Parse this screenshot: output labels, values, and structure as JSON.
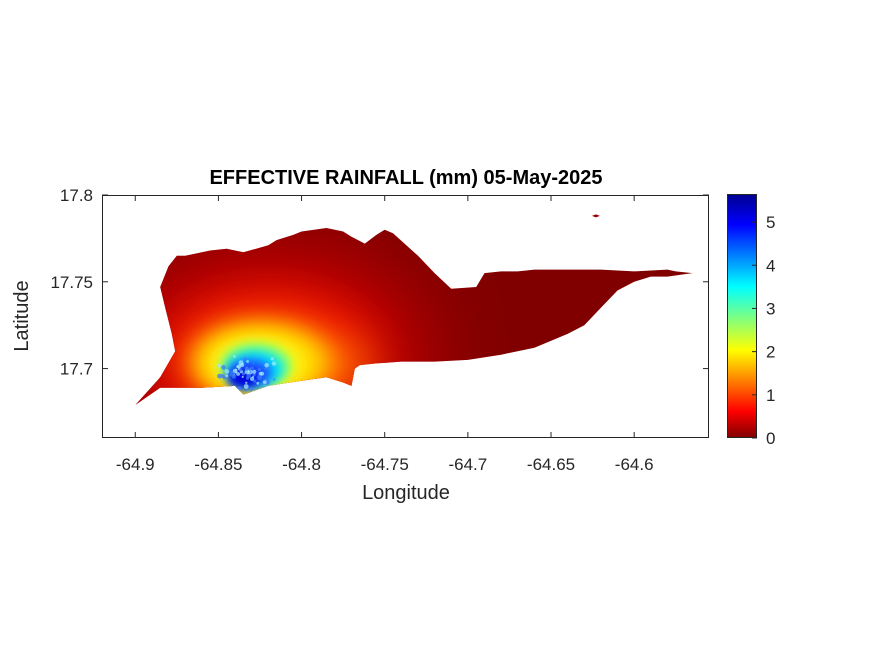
{
  "chart_data": {
    "type": "heatmap",
    "title": "EFFECTIVE RAINFALL (mm) 05-May-2025",
    "xlabel": "Longitude",
    "ylabel": "Latitude",
    "xlim": [
      -64.92,
      -64.555
    ],
    "ylim": [
      17.66,
      17.8
    ],
    "xticks": [
      -64.9,
      -64.85,
      -64.8,
      -64.75,
      -64.7,
      -64.65,
      -64.6
    ],
    "xtick_labels": [
      "-64.9",
      "-64.85",
      "-64.8",
      "-64.75",
      "-64.7",
      "-64.65",
      "-64.6"
    ],
    "yticks": [
      17.7,
      17.75,
      17.8
    ],
    "ytick_labels": [
      "17.7",
      "17.75",
      "17.8"
    ],
    "colorbar": {
      "range": [
        0,
        5.65
      ],
      "ticks": [
        0,
        1,
        2,
        3,
        4,
        5
      ],
      "tick_labels": [
        "0",
        "1",
        "2",
        "3",
        "4",
        "5"
      ],
      "colormap": "jet"
    },
    "grid": false,
    "rainfall_peak": {
      "lon": -64.835,
      "lat": 17.695,
      "value": 5.6
    },
    "rainfall_secondary": {
      "lon": -64.775,
      "lat": 17.697,
      "value": 1.7
    },
    "land_outline": [
      [
        -64.9,
        17.679
      ],
      [
        -64.885,
        17.689
      ],
      [
        -64.86,
        17.689
      ],
      [
        -64.84,
        17.69
      ],
      [
        -64.835,
        17.685
      ],
      [
        -64.82,
        17.69
      ],
      [
        -64.8,
        17.693
      ],
      [
        -64.785,
        17.695
      ],
      [
        -64.775,
        17.692
      ],
      [
        -64.77,
        17.69
      ],
      [
        -64.768,
        17.7
      ],
      [
        -64.765,
        17.702
      ],
      [
        -64.755,
        17.703
      ],
      [
        -64.74,
        17.704
      ],
      [
        -64.72,
        17.704
      ],
      [
        -64.7,
        17.705
      ],
      [
        -64.68,
        17.708
      ],
      [
        -64.66,
        17.712
      ],
      [
        -64.64,
        17.72
      ],
      [
        -64.63,
        17.725
      ],
      [
        -64.62,
        17.735
      ],
      [
        -64.61,
        17.745
      ],
      [
        -64.6,
        17.75
      ],
      [
        -64.59,
        17.753
      ],
      [
        -64.58,
        17.753
      ],
      [
        -64.565,
        17.755
      ],
      [
        -64.575,
        17.756
      ],
      [
        -64.58,
        17.757
      ],
      [
        -64.6,
        17.756
      ],
      [
        -64.62,
        17.757
      ],
      [
        -64.64,
        17.757
      ],
      [
        -64.66,
        17.757
      ],
      [
        -64.67,
        17.756
      ],
      [
        -64.68,
        17.756
      ],
      [
        -64.69,
        17.755
      ],
      [
        -64.695,
        17.747
      ],
      [
        -64.71,
        17.746
      ],
      [
        -64.72,
        17.755
      ],
      [
        -64.73,
        17.765
      ],
      [
        -64.745,
        17.778
      ],
      [
        -64.75,
        17.78
      ],
      [
        -64.755,
        17.777
      ],
      [
        -64.762,
        17.772
      ],
      [
        -64.77,
        17.776
      ],
      [
        -64.775,
        17.779
      ],
      [
        -64.785,
        17.781
      ],
      [
        -64.8,
        17.779
      ],
      [
        -64.805,
        17.777
      ],
      [
        -64.815,
        17.774
      ],
      [
        -64.82,
        17.771
      ],
      [
        -64.835,
        17.767
      ],
      [
        -64.845,
        17.769
      ],
      [
        -64.855,
        17.768
      ],
      [
        -64.87,
        17.765
      ],
      [
        -64.875,
        17.765
      ],
      [
        -64.88,
        17.759
      ],
      [
        -64.885,
        17.747
      ],
      [
        -64.882,
        17.735
      ],
      [
        -64.878,
        17.72
      ],
      [
        -64.876,
        17.71
      ],
      [
        -64.885,
        17.695
      ]
    ],
    "islet": {
      "lon": -64.623,
      "lat": 17.788
    }
  }
}
